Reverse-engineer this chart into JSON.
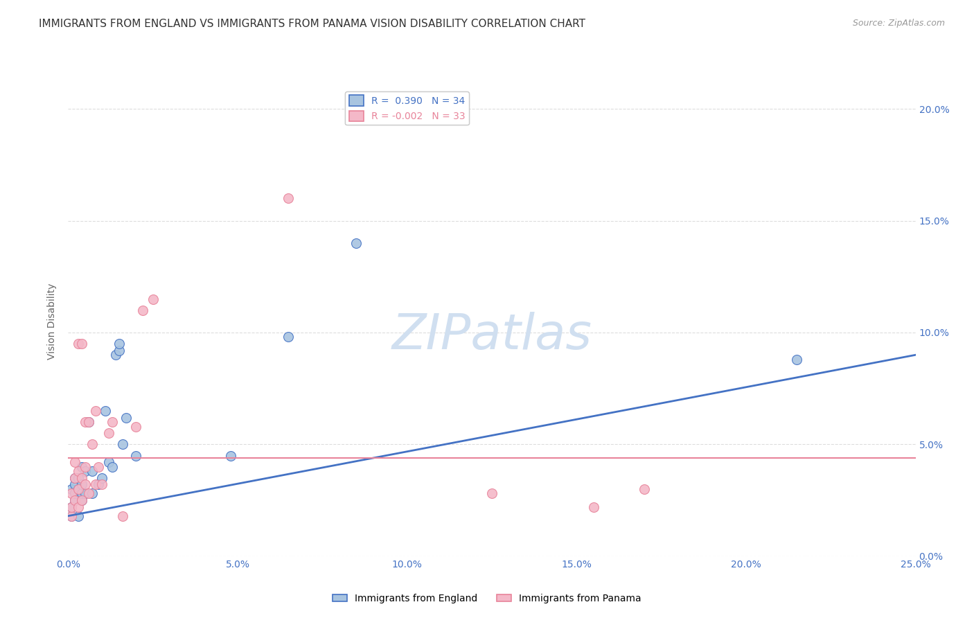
{
  "title": "IMMIGRANTS FROM ENGLAND VS IMMIGRANTS FROM PANAMA VISION DISABILITY CORRELATION CHART",
  "source": "Source: ZipAtlas.com",
  "ylabel": "Vision Disability",
  "xlim": [
    0.0,
    0.25
  ],
  "ylim": [
    0.0,
    0.21
  ],
  "xticks": [
    0.0,
    0.05,
    0.1,
    0.15,
    0.2,
    0.25
  ],
  "yticks": [
    0.0,
    0.05,
    0.1,
    0.15,
    0.2
  ],
  "england_color": "#a8c4e0",
  "panama_color": "#f4b8c8",
  "england_line_color": "#4472c4",
  "panama_line_color": "#e8849a",
  "england_R": 0.39,
  "england_N": 34,
  "panama_R": -0.002,
  "panama_N": 33,
  "england_x": [
    0.001,
    0.001,
    0.001,
    0.002,
    0.002,
    0.002,
    0.002,
    0.003,
    0.003,
    0.003,
    0.004,
    0.004,
    0.004,
    0.004,
    0.005,
    0.005,
    0.006,
    0.007,
    0.007,
    0.009,
    0.01,
    0.011,
    0.012,
    0.013,
    0.014,
    0.015,
    0.015,
    0.016,
    0.017,
    0.02,
    0.048,
    0.065,
    0.085,
    0.215
  ],
  "england_y": [
    0.018,
    0.022,
    0.03,
    0.025,
    0.028,
    0.032,
    0.035,
    0.018,
    0.03,
    0.035,
    0.025,
    0.028,
    0.032,
    0.04,
    0.028,
    0.038,
    0.06,
    0.028,
    0.038,
    0.032,
    0.035,
    0.065,
    0.042,
    0.04,
    0.09,
    0.092,
    0.095,
    0.05,
    0.062,
    0.045,
    0.045,
    0.098,
    0.14,
    0.088
  ],
  "panama_x": [
    0.001,
    0.001,
    0.001,
    0.002,
    0.002,
    0.002,
    0.003,
    0.003,
    0.003,
    0.003,
    0.004,
    0.004,
    0.004,
    0.005,
    0.005,
    0.005,
    0.006,
    0.006,
    0.007,
    0.008,
    0.008,
    0.009,
    0.01,
    0.012,
    0.013,
    0.016,
    0.02,
    0.022,
    0.025,
    0.065,
    0.125,
    0.155,
    0.17
  ],
  "panama_y": [
    0.018,
    0.022,
    0.028,
    0.025,
    0.035,
    0.042,
    0.022,
    0.03,
    0.038,
    0.095,
    0.025,
    0.035,
    0.095,
    0.032,
    0.04,
    0.06,
    0.028,
    0.06,
    0.05,
    0.032,
    0.065,
    0.04,
    0.032,
    0.055,
    0.06,
    0.018,
    0.058,
    0.11,
    0.115,
    0.16,
    0.028,
    0.022,
    0.03
  ],
  "england_line_x": [
    0.0,
    0.25
  ],
  "england_line_y": [
    0.018,
    0.09
  ],
  "panama_line_y": [
    0.044,
    0.044
  ],
  "background_color": "#ffffff",
  "grid_color": "#dddddd",
  "title_fontsize": 11,
  "label_fontsize": 10,
  "tick_fontsize": 10,
  "marker_size": 100,
  "watermark": "ZIPatlas",
  "watermark_color": "#d0dff0",
  "watermark_fontsize": 52
}
